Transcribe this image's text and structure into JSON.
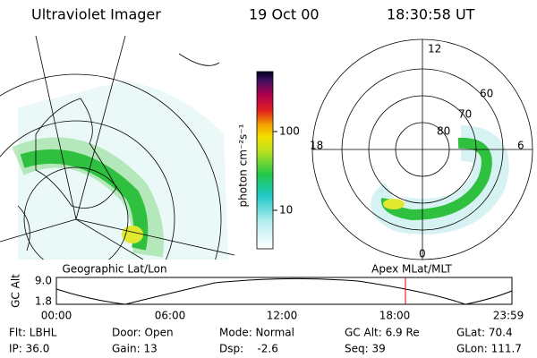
{
  "header": {
    "title": "Ultraviolet Imager",
    "date": "19 Oct 00",
    "time": "18:30:58 UT"
  },
  "colorbar": {
    "label": "photon cm⁻²s⁻¹",
    "ticks": [
      "100",
      "10"
    ]
  },
  "polar_plot": {
    "mlt_labels": [
      "12",
      "18",
      "6",
      "0"
    ],
    "lat_labels": [
      "60",
      "70",
      "80"
    ]
  },
  "panel_labels": [
    "Geographic Lat/Lon",
    "Apex MLat/MLT"
  ],
  "orbit": {
    "y_label": "GC Alt",
    "y_ticks": [
      "9.0",
      "1.8"
    ],
    "x_ticks": [
      "00:00",
      "06:00",
      "12:00",
      "18:00",
      "23:59"
    ]
  },
  "footer": {
    "rows": [
      [
        "Flt: LBHL",
        "Door: Open",
        "Mode: Normal",
        "GC Alt: 6.9 Re",
        "GLat: 70.4"
      ],
      [
        "IP: 36.0",
        "Gain: 13",
        "Dsp:    -2.6",
        "Seq: 39",
        "GLon: 111.7"
      ]
    ]
  }
}
